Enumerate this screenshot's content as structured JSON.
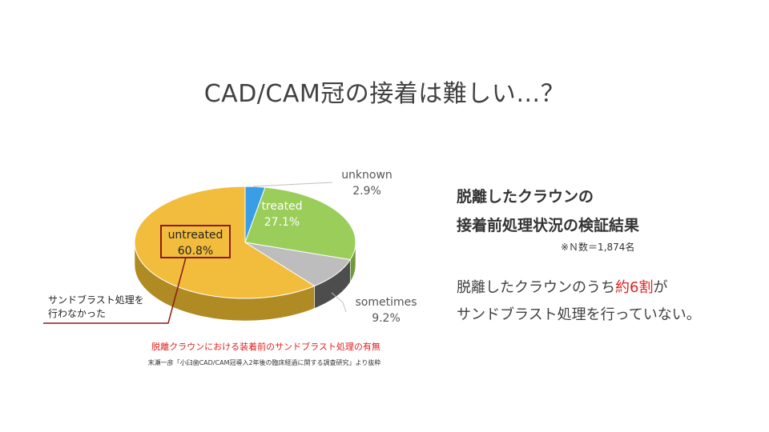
{
  "slide": {
    "title": "CAD/CAM冠の接着は難しい…？"
  },
  "chart_data": {
    "type": "pie",
    "title": "",
    "slices": [
      {
        "label": "unknown",
        "value": 2.9,
        "display": "2.9%",
        "color": "#3a9ee6"
      },
      {
        "label": "treated",
        "value": 27.1,
        "display": "27.1%",
        "color": "#9acd5a"
      },
      {
        "label": "sometimes",
        "value": 9.2,
        "display": "9.2%",
        "color": "#bdbdbd"
      },
      {
        "label": "untreated",
        "value": 60.8,
        "display": "60.8%",
        "color": "#f2bc3c"
      }
    ],
    "side_colors": {
      "unknown": "#2d7cb8",
      "treated": "#6f9a3a",
      "sometimes": "#4d4d4d",
      "untreated": "#b08a22"
    },
    "highlight_color": "#8a1a1a",
    "caption": "脱離クラウンにおける装着前のサンドブラスト処理の有無",
    "source": "末瀬一彦「小臼歯CAD/CAM冠導入2年後の臨床経過に関する調査研究」より抜粋"
  },
  "callout": {
    "line1": "サンドブラスト処理を",
    "line2": "行わなかった"
  },
  "summary": {
    "heading_line1": "脱離したクラウンの",
    "heading_line2": "接着前処理状況の検証結果",
    "note": "※Ｎ数＝1,874名",
    "body_line1_pre": "脱離したクラウンのうち",
    "body_line1_accent": "約6割",
    "body_line1_post": "が",
    "body_line2": "サンドブラスト処理を行っていない。"
  }
}
